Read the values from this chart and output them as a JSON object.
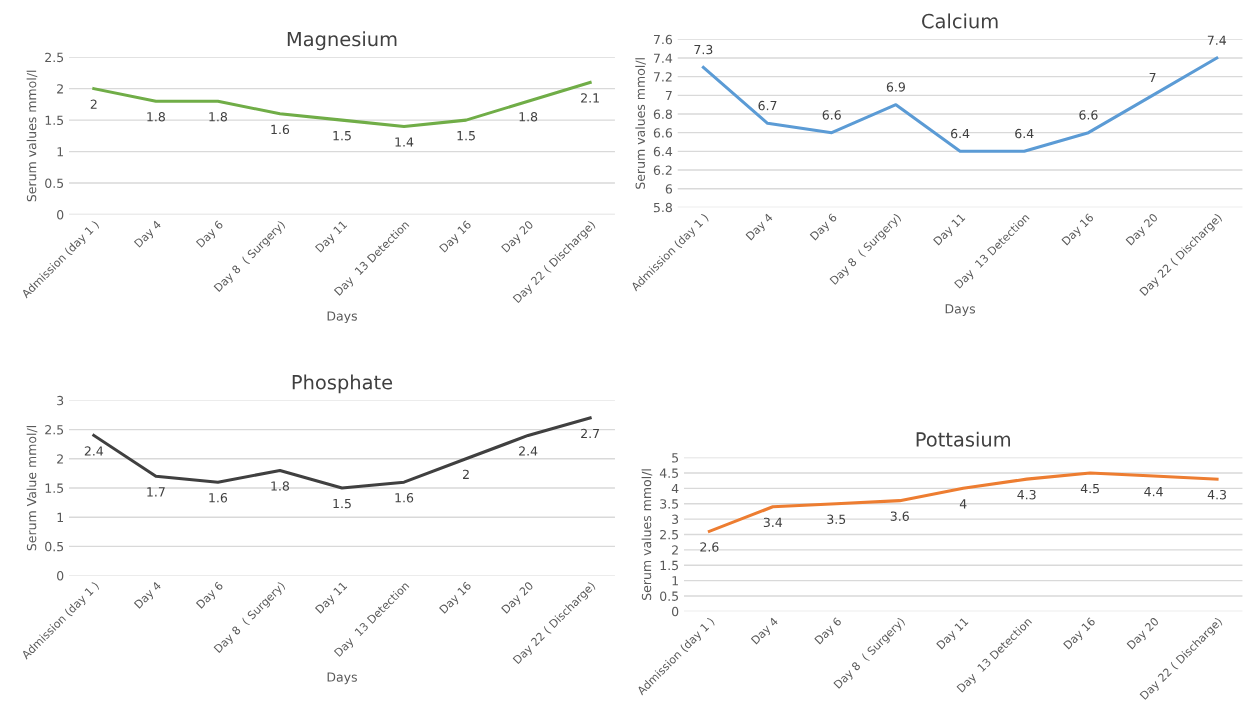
{
  "chart_data": [
    {
      "type": "line",
      "title": "Magnesium",
      "xlabel": "Days",
      "ylabel": "Serum values mmol/l",
      "categories": [
        "Admission (day 1 )",
        "Day 4",
        "Day 6",
        "Day 8  ( Surgery)",
        "Day 11",
        "Day  13 Detection",
        "Day 16",
        "Day 20",
        "Day 22 ( Discharge)"
      ],
      "series": [
        {
          "color": "#70ad47",
          "values": [
            2,
            1.8,
            1.8,
            1.6,
            1.5,
            1.4,
            1.5,
            1.8,
            2.1
          ]
        }
      ],
      "ylim": [
        0,
        2.5
      ],
      "yticks": [
        0,
        0.5,
        1,
        1.5,
        2,
        2.5
      ],
      "grid": "y",
      "data_labels": true,
      "marker": "none"
    },
    {
      "type": "line",
      "title": "Calcium",
      "xlabel": "Days",
      "ylabel": "Serum values mmol/l",
      "categories": [
        "Admission (day 1 )",
        "Day 4",
        "Day 6",
        "Day 8  ( Surgery)",
        "Day 11",
        "Day  13 Detection",
        "Day 16",
        "Day 20",
        "Day 22 ( Discharge)"
      ],
      "series": [
        {
          "color": "#5b9bd5",
          "values": [
            7.3,
            6.7,
            6.6,
            6.9,
            6.4,
            6.4,
            6.6,
            7,
            7.4
          ]
        }
      ],
      "ylim": [
        5.8,
        7.6
      ],
      "yticks": [
        5.8,
        6,
        6.2,
        6.4,
        6.6,
        6.8,
        7,
        7.2,
        7.4,
        7.6
      ],
      "grid": "y",
      "data_labels": true,
      "marker": "none"
    },
    {
      "type": "line",
      "title": "Phosphate",
      "xlabel": "Days",
      "ylabel": "Serum Value mmol/l",
      "categories": [
        "Admission (day 1 )",
        "Day 4",
        "Day 6",
        "Day 8  ( Surgery)",
        "Day 11",
        "Day  13 Detection",
        "Day 16",
        "Day 20",
        "Day 22 ( Discharge)"
      ],
      "series": [
        {
          "color": "#404040",
          "values": [
            2.4,
            1.7,
            1.6,
            1.8,
            1.5,
            1.6,
            2,
            2.4,
            2.7
          ]
        }
      ],
      "ylim": [
        0,
        3
      ],
      "yticks": [
        0,
        0.5,
        1,
        1.5,
        2,
        2.5,
        3
      ],
      "grid": "y",
      "data_labels": true,
      "marker": "none"
    },
    {
      "type": "line",
      "title": "Pottasium",
      "ylabel": "Serum values mmol/l",
      "categories": [
        "Admission (day 1 )",
        "Day 4",
        "Day 6",
        "Day 8  ( Surgery)",
        "Day 11",
        "Day  13 Detection",
        "Day 16",
        "Day 20",
        "Day 22 ( Discharge)"
      ],
      "series": [
        {
          "color": "#ed7d31",
          "values": [
            2.6,
            3.4,
            3.5,
            3.6,
            4,
            4.3,
            4.5,
            4.4,
            4.3
          ]
        }
      ],
      "ylim": [
        0,
        5
      ],
      "yticks": [
        0,
        0.5,
        1,
        1.5,
        2,
        2.5,
        3,
        3.5,
        4,
        4.5,
        5
      ],
      "grid": "y",
      "data_labels": true,
      "marker": "none"
    }
  ]
}
